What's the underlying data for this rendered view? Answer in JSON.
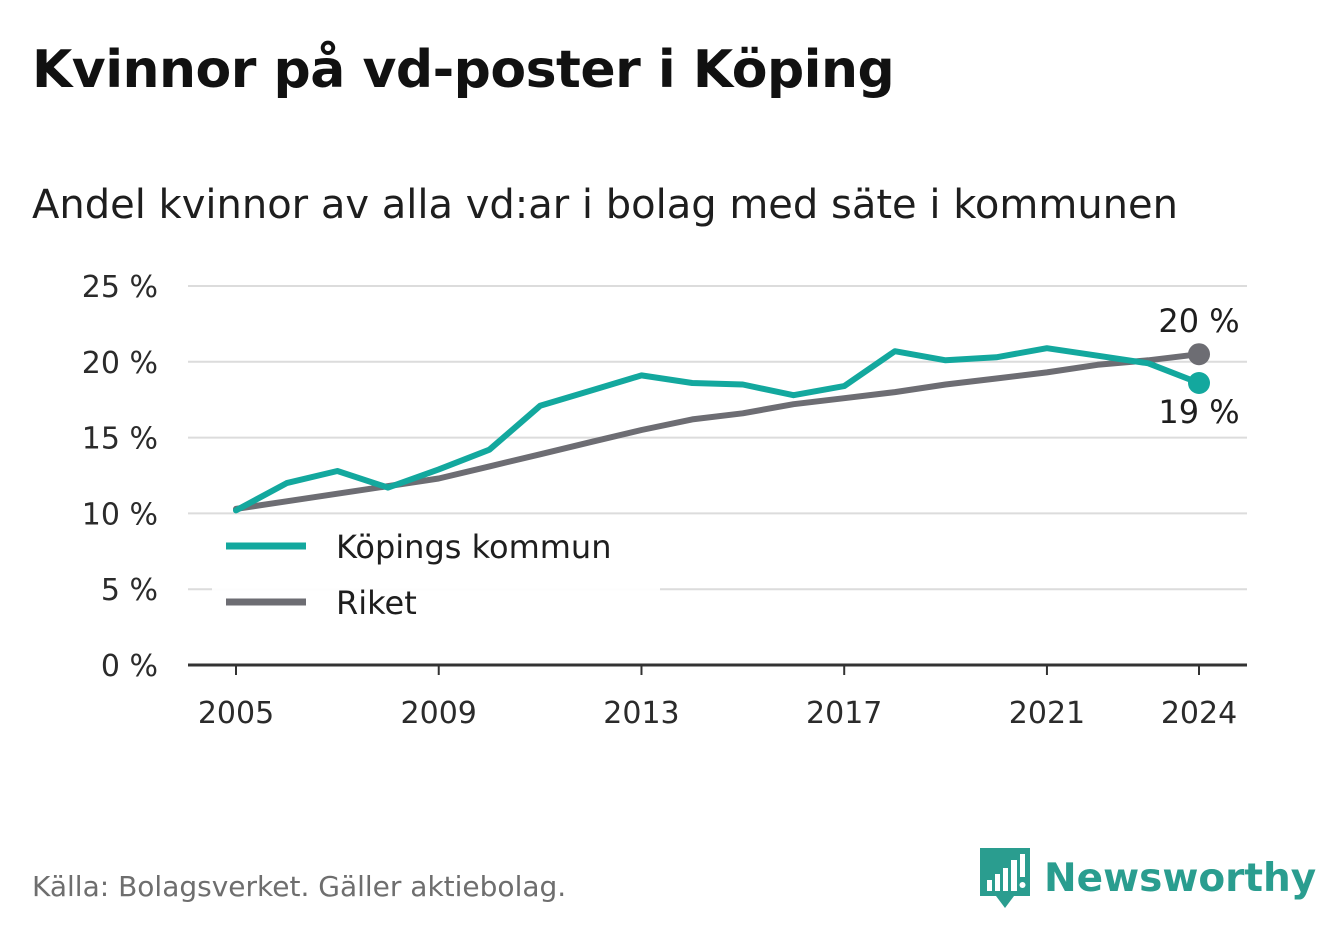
{
  "title": "Kvinnor på vd-poster i Köping",
  "subtitle": "Andel kvinnor av alla vd:ar i bolag med säte i kommunen",
  "source": "Källa: Bolagsverket. Gäller aktiebolag.",
  "brand": {
    "name": "Newsworthy",
    "icon": "newsworthy-logo-icon",
    "color": "#2a9d8f"
  },
  "chart_data": {
    "type": "line",
    "x": [
      2005,
      2006,
      2007,
      2008,
      2009,
      2010,
      2011,
      2012,
      2013,
      2014,
      2015,
      2016,
      2017,
      2018,
      2019,
      2020,
      2021,
      2022,
      2023,
      2024
    ],
    "series": [
      {
        "name": "Köpings kommun",
        "color": "#13a89e",
        "values": [
          10.2,
          12.0,
          12.8,
          11.7,
          12.9,
          14.2,
          17.1,
          18.1,
          19.1,
          18.6,
          18.5,
          17.8,
          18.4,
          20.7,
          20.1,
          20.3,
          20.9,
          20.4,
          19.9,
          18.6
        ],
        "end_label": "19 %"
      },
      {
        "name": "Riket",
        "color": "#6d6d73",
        "values": [
          10.3,
          10.8,
          11.3,
          11.8,
          12.3,
          13.1,
          13.9,
          14.7,
          15.5,
          16.2,
          16.6,
          17.2,
          17.6,
          18.0,
          18.5,
          18.9,
          19.3,
          19.8,
          20.1,
          20.5
        ],
        "end_label": "20 %"
      }
    ],
    "xticks": [
      "2005",
      "2009",
      "2013",
      "2017",
      "2021",
      "2024"
    ],
    "xtick_values": [
      2005,
      2009,
      2013,
      2017,
      2021,
      2024
    ],
    "yticks": [
      "0 %",
      "5 %",
      "10 %",
      "15 %",
      "20 %",
      "25 %"
    ],
    "ytick_values": [
      0,
      5,
      10,
      15,
      20,
      25
    ],
    "ylim": [
      0,
      25
    ],
    "xlim": [
      2005,
      2024
    ],
    "grid": true,
    "legend_position": "lower-left"
  }
}
